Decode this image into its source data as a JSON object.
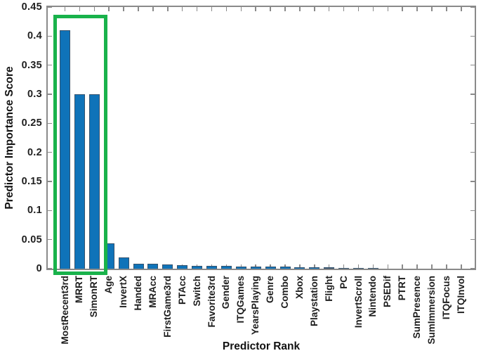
{
  "figure": {
    "background": "#ffffff",
    "description": "Bar chart of predictor importance scores ranked in descending order, with the top three predictors outlined by a green rectangle"
  },
  "chart_data": {
    "type": "bar",
    "title": "",
    "xlabel": "Predictor Rank",
    "ylabel": "Predictor Importance Score",
    "ylim": [
      0,
      0.45
    ],
    "yticks": [
      0,
      0.05,
      0.1,
      0.15,
      0.2,
      0.25,
      0.3,
      0.35,
      0.4,
      0.45
    ],
    "ytick_labels": [
      "0",
      "0.05",
      "0.1",
      "0.15",
      "0.2",
      "0.25",
      "0.3",
      "0.35",
      "0.4",
      "0.45"
    ],
    "xtick_rotation_degrees": 90,
    "grid": false,
    "legend": null,
    "box": true,
    "categories": [
      "MostRecent3rd",
      "MRRT",
      "SimonRT",
      "Age",
      "InvertX",
      "Handed",
      "MRAcc",
      "FirstGame3rd",
      "PTAcc",
      "Switch",
      "Favorite3rd",
      "Gender",
      "ITQGames",
      "YearsPlaying",
      "Genre",
      "Combo",
      "Xbox",
      "Playstation",
      "Flight",
      "PC",
      "InvertScroll",
      "Nintendo",
      "PSEDif",
      "PTRT",
      "SumPresence",
      "SumImmersion",
      "ITQFocus",
      "ITQInvol"
    ],
    "values": [
      0.41,
      0.3,
      0.3,
      0.043,
      0.019,
      0.009,
      0.008,
      0.007,
      0.006,
      0.005,
      0.005,
      0.0045,
      0.004,
      0.004,
      0.0037,
      0.0036,
      0.003,
      0.0028,
      0.0022,
      0.0012,
      0.001,
      0.0008,
      0.0005,
      0.0004,
      0.0003,
      0.0002,
      0.0002,
      0.0001
    ],
    "colors": {
      "bar_fill": "#0f73b9",
      "bar_edge": "#35536e",
      "axis": "#8a8a8a",
      "text": "#1c1c1c",
      "highlight": "#19b24b"
    },
    "annotations": [
      {
        "type": "rect-highlight",
        "purpose": "top-3-predictors",
        "from_category": "MostRecent3rd",
        "to_category": "SimonRT",
        "color": "#19b24b"
      }
    ]
  }
}
